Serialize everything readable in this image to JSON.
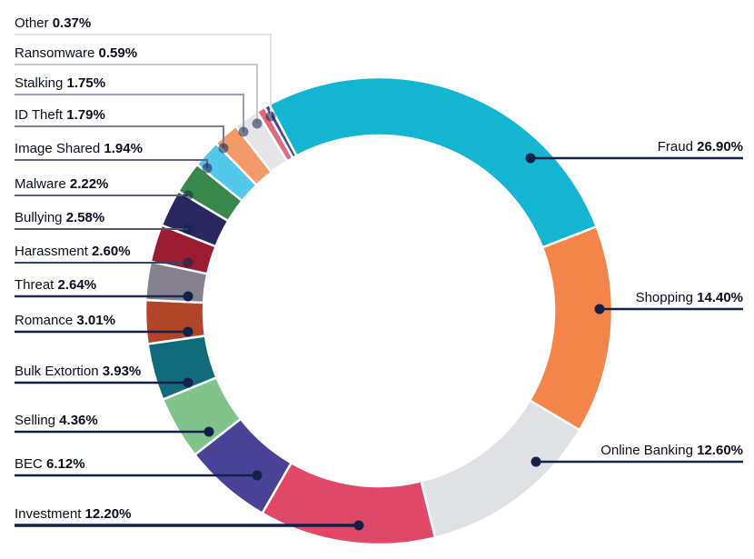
{
  "chart_data": {
    "type": "pie",
    "subtype": "donut",
    "title": "",
    "unit": "%",
    "slices": [
      {
        "label": "Fraud",
        "value": 26.9,
        "value_text": "26.90%",
        "color": "#13b5d3"
      },
      {
        "label": "Shopping",
        "value": 14.4,
        "value_text": "14.40%",
        "color": "#f3854a"
      },
      {
        "label": "Online Banking",
        "value": 12.6,
        "value_text": "12.60%",
        "color": "#e0e1e5"
      },
      {
        "label": "Investment",
        "value": 12.2,
        "value_text": "12.20%",
        "color": "#e14867"
      },
      {
        "label": "BEC",
        "value": 6.12,
        "value_text": "6.12%",
        "color": "#4a4198"
      },
      {
        "label": "Selling",
        "value": 4.36,
        "value_text": "4.36%",
        "color": "#80c48b"
      },
      {
        "label": "Bulk Extortion",
        "value": 3.93,
        "value_text": "3.93%",
        "color": "#116b7b"
      },
      {
        "label": "Romance",
        "value": 3.01,
        "value_text": "3.01%",
        "color": "#b24428"
      },
      {
        "label": "Threat",
        "value": 2.64,
        "value_text": "2.64%",
        "color": "#85818f"
      },
      {
        "label": "Harassment",
        "value": 2.6,
        "value_text": "2.60%",
        "color": "#9a1c30"
      },
      {
        "label": "Bullying",
        "value": 2.58,
        "value_text": "2.58%",
        "color": "#2a2760"
      },
      {
        "label": "Malware",
        "value": 2.22,
        "value_text": "2.22%",
        "color": "#39874a"
      },
      {
        "label": "Image Shared",
        "value": 1.94,
        "value_text": "1.94%",
        "color": "#52c8ea"
      },
      {
        "label": "ID Theft",
        "value": 1.79,
        "value_text": "1.79%",
        "color": "#f49a68"
      },
      {
        "label": "Stalking",
        "value": 1.75,
        "value_text": "1.75%",
        "color": "#e5e5e9"
      },
      {
        "label": "Ransomware",
        "value": 0.59,
        "value_text": "0.59%",
        "color": "#e06a80"
      },
      {
        "label": "Other",
        "value": 0.37,
        "value_text": "0.37%",
        "color": "#4a4494"
      }
    ],
    "legend": "callout-labels"
  }
}
